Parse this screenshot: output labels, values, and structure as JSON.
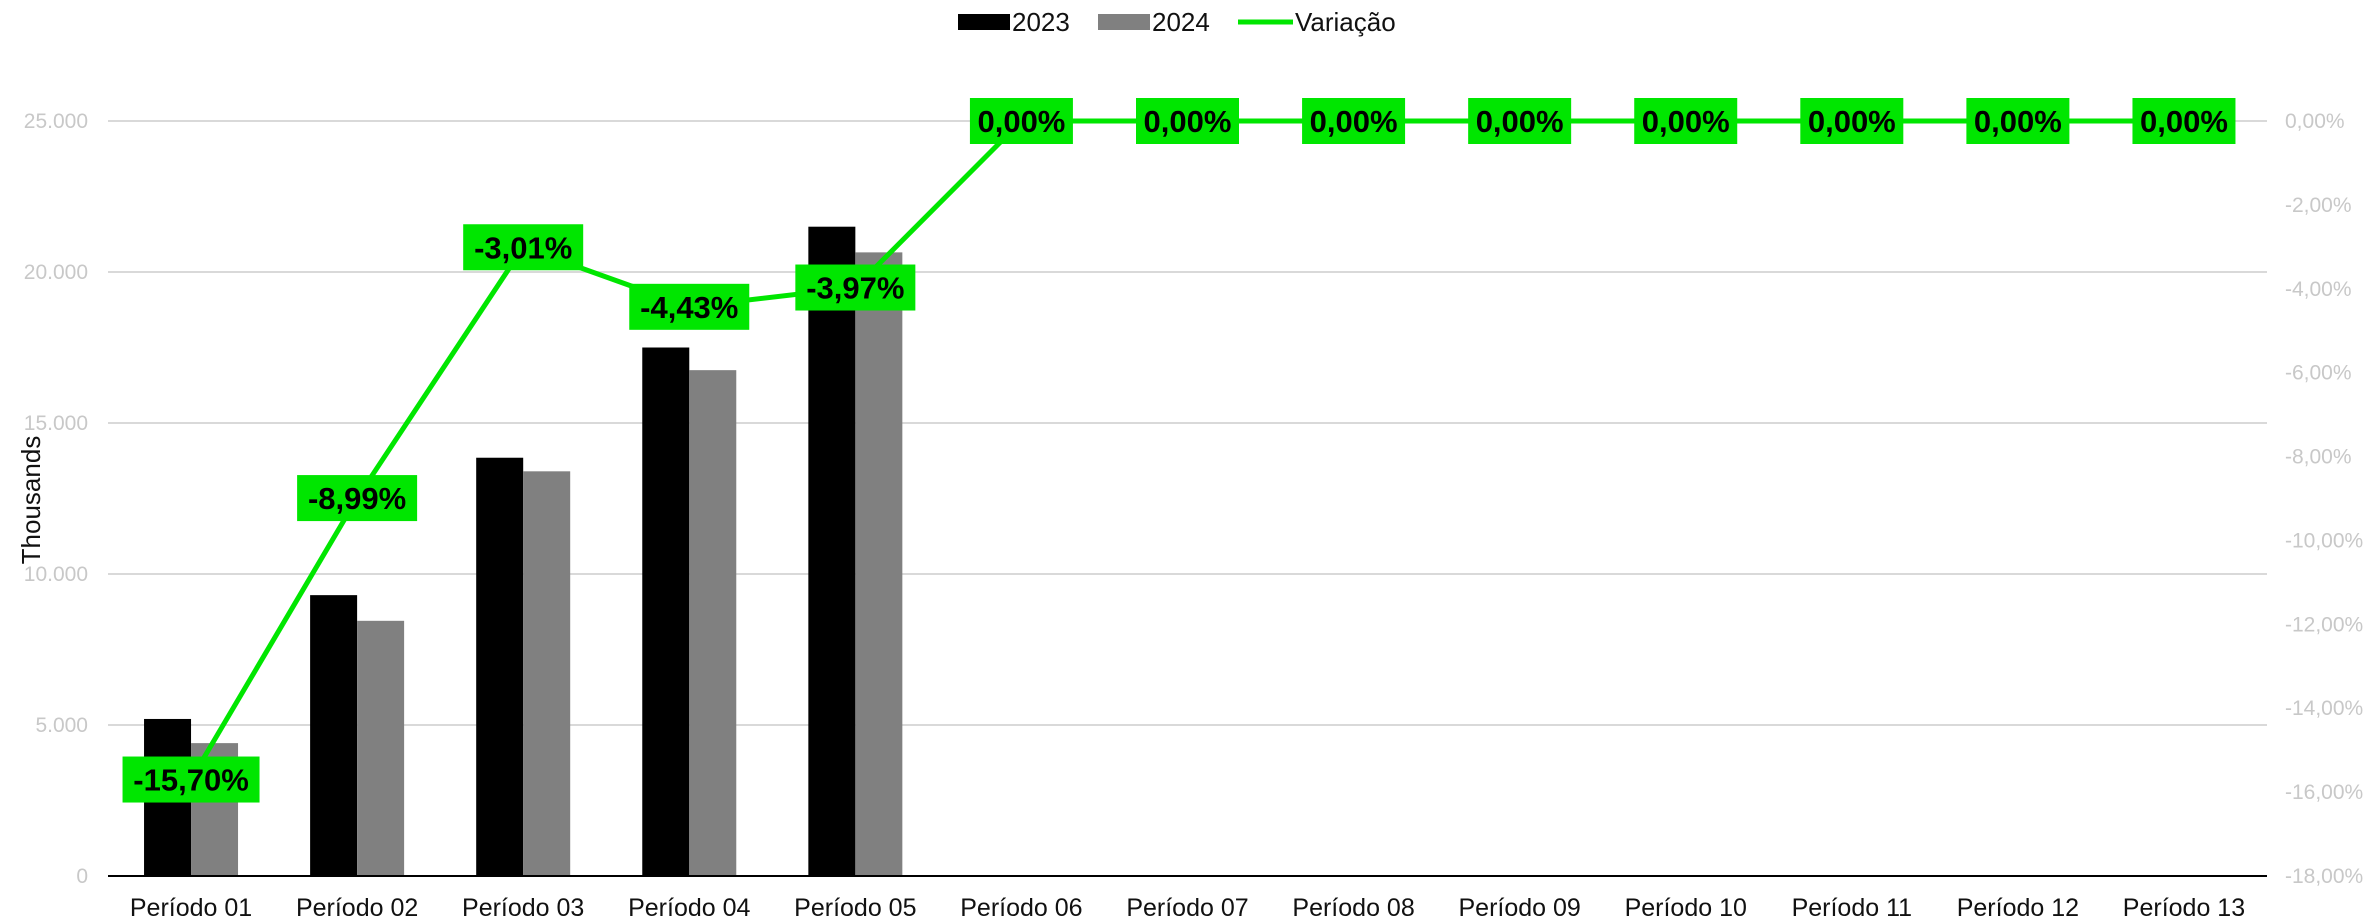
{
  "chart_data": {
    "type": "bar",
    "categories": [
      "Período 01",
      "Período 02",
      "Período 03",
      "Período 04",
      "Período 05",
      "Período 06",
      "Período 07",
      "Período 08",
      "Período 09",
      "Período 10",
      "Período 11",
      "Período 12",
      "Período 13"
    ],
    "series": [
      {
        "name": "2023",
        "kind": "bar",
        "axis": "left",
        "color": "#000000",
        "values": [
          5200,
          9300,
          13850,
          17500,
          21500,
          0,
          0,
          0,
          0,
          0,
          0,
          0,
          0
        ]
      },
      {
        "name": "2024",
        "kind": "bar",
        "axis": "left",
        "color": "#808080",
        "values": [
          4400,
          8450,
          13400,
          16750,
          20650,
          0,
          0,
          0,
          0,
          0,
          0,
          0,
          0
        ]
      },
      {
        "name": "Variação",
        "kind": "line",
        "axis": "right",
        "color": "#00e600",
        "values": [
          -15.7,
          -8.99,
          -3.01,
          -4.43,
          -3.97,
          0,
          0,
          0,
          0,
          0,
          0,
          0,
          0
        ],
        "labels": [
          "-15,70%",
          "-8,99%",
          "-3,01%",
          "-4,43%",
          "-3,97%",
          "0,00%",
          "0,00%",
          "0,00%",
          "0,00%",
          "0,00%",
          "0,00%",
          "0,00%",
          "0,00%"
        ]
      }
    ],
    "y_left": {
      "label": "Thousands",
      "min": 0,
      "max": 25000,
      "ticks": [
        0,
        5000,
        10000,
        15000,
        20000,
        25000
      ],
      "tick_labels": [
        "0",
        "5.000",
        "10.000",
        "15.000",
        "20.000",
        "25.000"
      ]
    },
    "y_right": {
      "min": -18,
      "max": 0,
      "ticks": [
        0,
        -2,
        -4,
        -6,
        -8,
        -10,
        -12,
        -14,
        -16,
        -18
      ],
      "tick_labels": [
        "0,00%",
        "-2,00%",
        "-4,00%",
        "-6,00%",
        "-8,00%",
        "-10,00%",
        "-12,00%",
        "-14,00%",
        "-16,00%",
        "-18,00%"
      ]
    },
    "legend": {
      "position": "top-center",
      "items": [
        {
          "label": "2023",
          "symbol": "bar",
          "color": "#000000"
        },
        {
          "label": "2024",
          "symbol": "bar",
          "color": "#808080"
        },
        {
          "label": "Variação",
          "symbol": "line",
          "color": "#00e600"
        }
      ]
    },
    "grid": "horizontal",
    "label_background": "#00e600"
  }
}
